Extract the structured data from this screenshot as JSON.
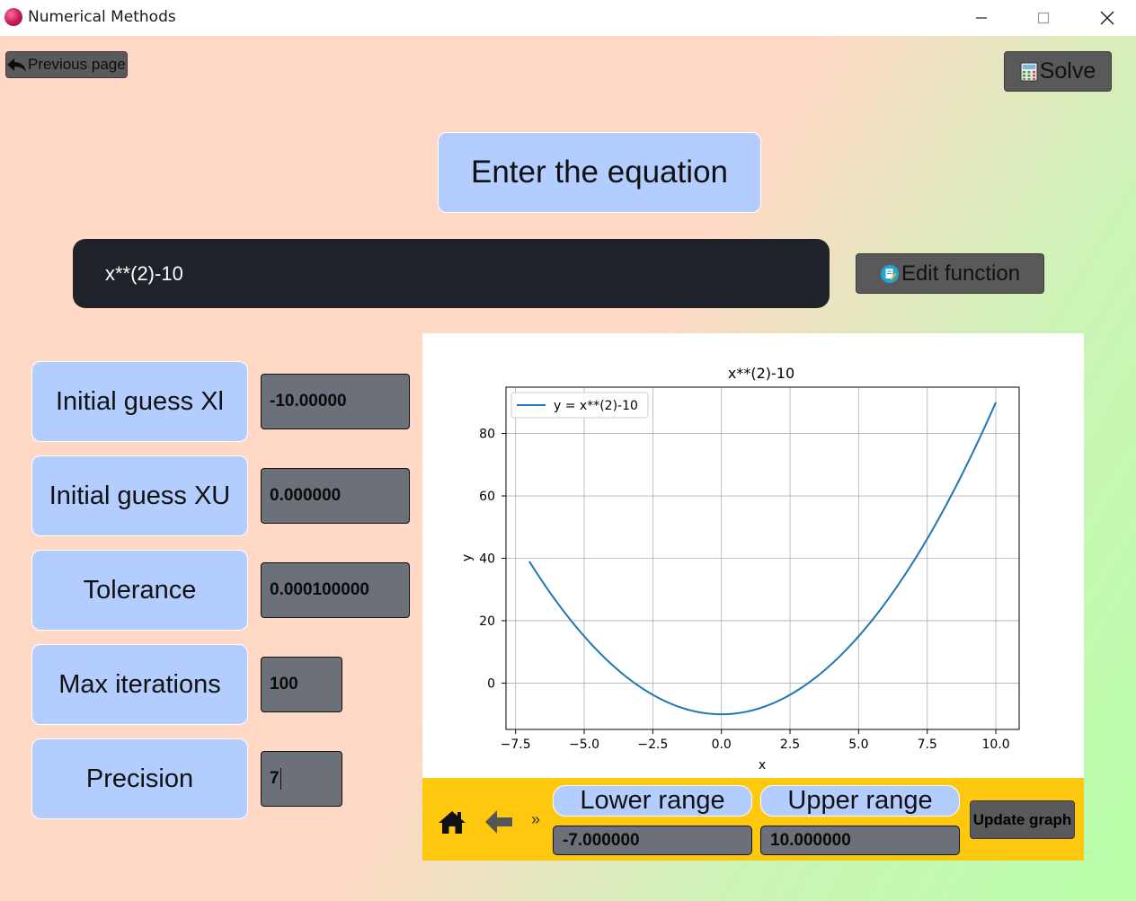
{
  "window": {
    "title": "Numerical Methods"
  },
  "nav": {
    "previous_label": "Previous page",
    "solve_label": "Solve"
  },
  "heading": "Enter the equation",
  "equation": {
    "value": "x**(2)-10",
    "edit_label": "Edit function"
  },
  "params": {
    "xl": {
      "label": "Initial guess Xl",
      "value": "-10.00000"
    },
    "xu": {
      "label": "Initial guess XU",
      "value": "0.000000"
    },
    "tolerance": {
      "label": "Tolerance",
      "value": "0.000100000"
    },
    "max_iter": {
      "label": "Max iterations",
      "value": "100"
    },
    "precision": {
      "label": "Precision",
      "value": "7"
    }
  },
  "plot_controls": {
    "overflow_label": "»",
    "lower_label": "Lower range",
    "lower_value": "-7.000000",
    "upper_label": "Upper range",
    "upper_value": "10.000000",
    "update_label": "Update graph"
  },
  "colors": {
    "line": "#1f77b4",
    "label_bg": "#b3cdff",
    "toolbar_bg": "#fdc80e",
    "input_bg": "#6c7078"
  },
  "chart_data": {
    "type": "line",
    "title": "x**(2)-10",
    "xlabel": "x",
    "ylabel": "y",
    "function": "x**(2)-10",
    "xlim": [
      -7.85,
      10.85
    ],
    "ylim": [
      -14.85,
      94.85
    ],
    "x_range": [
      -7,
      10
    ],
    "xticks": [
      -7.5,
      -5.0,
      -2.5,
      0.0,
      2.5,
      5.0,
      7.5,
      10.0
    ],
    "xtick_labels": [
      "−7.5",
      "−5.0",
      "−2.5",
      "0.0",
      "2.5",
      "5.0",
      "7.5",
      "10.0"
    ],
    "yticks": [
      0,
      20,
      40,
      60,
      80
    ],
    "ytick_labels": [
      "0",
      "20",
      "40",
      "60",
      "80"
    ],
    "grid": true,
    "legend": "top-left",
    "series": [
      {
        "name": "y = x**(2)-10",
        "color": "#1f77b4"
      }
    ]
  }
}
